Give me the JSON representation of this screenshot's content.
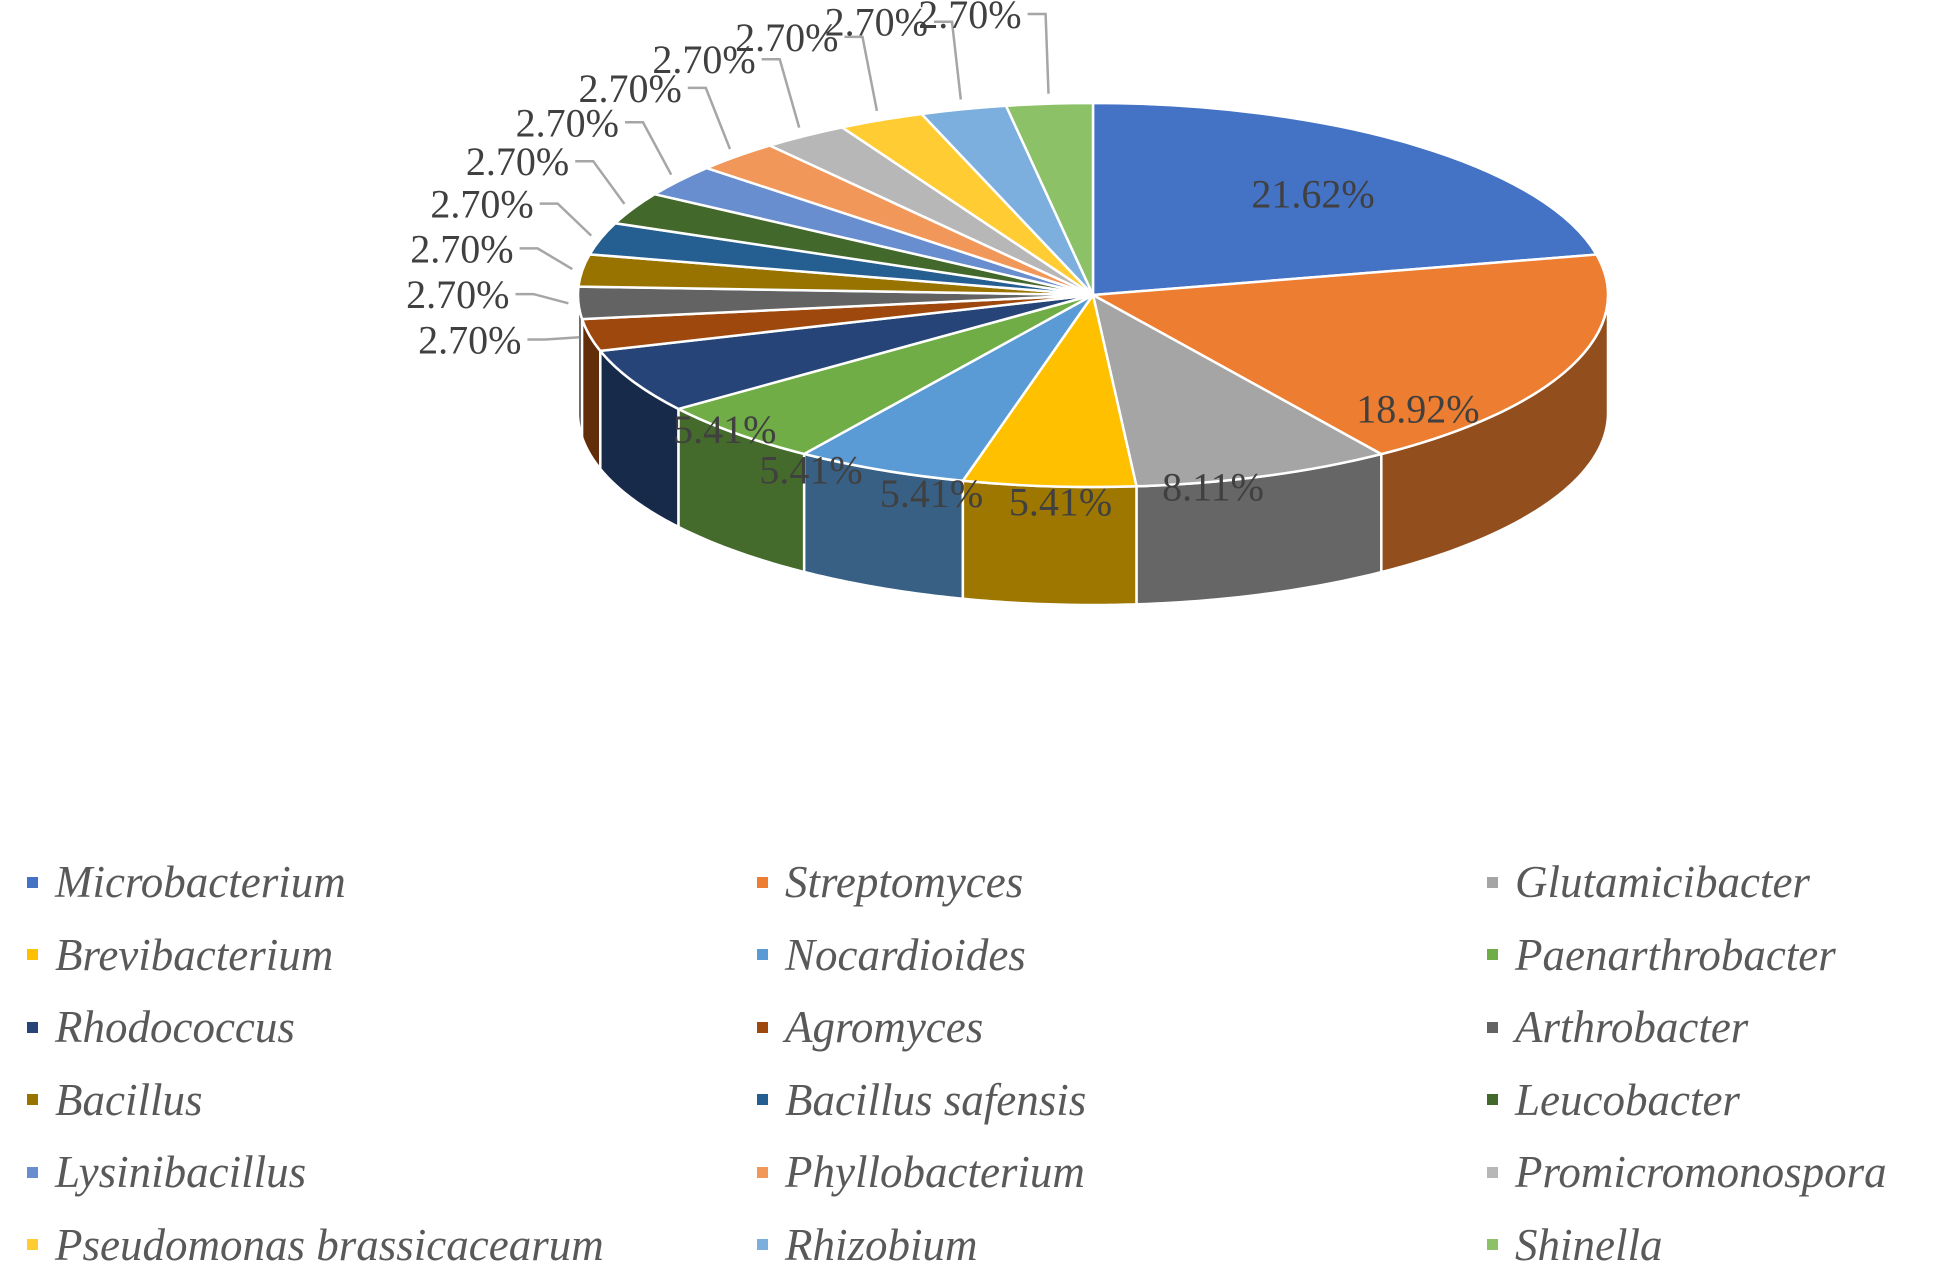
{
  "chart_data": {
    "type": "pie",
    "style": "3d-exploded-none",
    "slices": [
      {
        "name": "Microbacterium",
        "value": 21.62,
        "label": "21.62%",
        "color": "#4472C4"
      },
      {
        "name": "Streptomyces",
        "value": 18.92,
        "label": "18.92%",
        "color": "#ED7D31"
      },
      {
        "name": "Glutamicibacter",
        "value": 8.11,
        "label": "8.11%",
        "color": "#A5A5A5"
      },
      {
        "name": "Brevibacterium",
        "value": 5.41,
        "label": "5.41%",
        "color": "#FFC000"
      },
      {
        "name": "Nocardioides",
        "value": 5.41,
        "label": "5.41%",
        "color": "#5B9BD5"
      },
      {
        "name": "Paenarthrobacter",
        "value": 5.41,
        "label": "5.41%",
        "color": "#70AD47"
      },
      {
        "name": "Rhodococcus",
        "value": 5.41,
        "label": "5.41%",
        "color": "#264478"
      },
      {
        "name": "Agromyces",
        "value": 2.7,
        "label": "2.70%",
        "color": "#9E480E"
      },
      {
        "name": "Arthrobacter",
        "value": 2.7,
        "label": "2.70%",
        "color": "#636363"
      },
      {
        "name": "Bacillus",
        "value": 2.7,
        "label": "2.70%",
        "color": "#997300"
      },
      {
        "name": "Bacillus safensis",
        "value": 2.7,
        "label": "2.70%",
        "color": "#255E91"
      },
      {
        "name": "Leucobacter",
        "value": 2.7,
        "label": "2.70%",
        "color": "#43682B"
      },
      {
        "name": "Lysinibacillus",
        "value": 2.7,
        "label": "2.70%",
        "color": "#698ED0"
      },
      {
        "name": "Phyllobacterium",
        "value": 2.7,
        "label": "2.70%",
        "color": "#F1975A"
      },
      {
        "name": "Promicromonospora",
        "value": 2.7,
        "label": "2.70%",
        "color": "#B7B7B7"
      },
      {
        "name": "Pseudomonas brassicacearum",
        "value": 2.7,
        "label": "2.70%",
        "color": "#FFCD33"
      },
      {
        "name": "Rhizobium",
        "value": 2.7,
        "label": "2.70%",
        "color": "#7CAFDD"
      },
      {
        "name": "Shinella",
        "value": 2.7,
        "label": "2.70%",
        "color": "#8CC168"
      }
    ],
    "legend_position": "bottom",
    "legend_columns": 3
  }
}
